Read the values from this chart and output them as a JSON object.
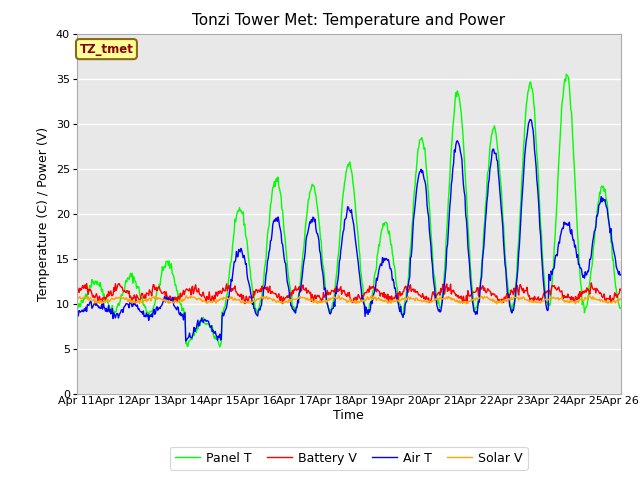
{
  "title": "Tonzi Tower Met: Temperature and Power",
  "xlabel": "Time",
  "ylabel": "Temperature (C) / Power (V)",
  "ylim": [
    0,
    40
  ],
  "yticks": [
    0,
    5,
    10,
    15,
    20,
    25,
    30,
    35,
    40
  ],
  "xtick_labels": [
    "Apr 11",
    "Apr 12",
    "Apr 13",
    "Apr 14",
    "Apr 15",
    "Apr 16",
    "Apr 17",
    "Apr 18",
    "Apr 19",
    "Apr 20",
    "Apr 21",
    "Apr 22",
    "Apr 23",
    "Apr 24",
    "Apr 25",
    "Apr 26"
  ],
  "annotation_text": "TZ_tmet",
  "annotation_color": "#8B0000",
  "annotation_bg": "#FFFF99",
  "annotation_edge": "#8B6914",
  "bg_color": "#E8E8E8",
  "panel_T_color": "#00FF00",
  "battery_V_color": "#FF0000",
  "air_T_color": "#0000FF",
  "solar_V_color": "#FFA500",
  "legend_labels": [
    "Panel T",
    "Battery V",
    "Air T",
    "Solar V"
  ],
  "title_fontsize": 11,
  "label_fontsize": 9,
  "tick_fontsize": 8,
  "legend_fontsize": 9,
  "day_peaks_panel": [
    12.5,
    13.0,
    14.5,
    8.0,
    20.5,
    24.0,
    23.0,
    25.5,
    19.0,
    28.5,
    33.5,
    29.5,
    34.5,
    35.5,
    23.0
  ],
  "day_troughs_panel": [
    9.5,
    9.0,
    9.0,
    5.5,
    9.0,
    9.5,
    9.0,
    9.5,
    9.0,
    9.5,
    9.5,
    9.5,
    9.5,
    9.5,
    9.5
  ],
  "day_peaks_air": [
    10.0,
    10.0,
    10.5,
    8.0,
    16.0,
    19.5,
    19.5,
    20.5,
    15.0,
    25.0,
    28.0,
    27.0,
    30.5,
    19.0,
    21.5
  ],
  "day_troughs_air": [
    9.0,
    8.5,
    8.5,
    6.0,
    8.5,
    9.0,
    9.0,
    9.0,
    9.0,
    9.0,
    9.0,
    9.0,
    9.0,
    13.0,
    13.0
  ],
  "n_days": 15,
  "pts_per_day": 48
}
